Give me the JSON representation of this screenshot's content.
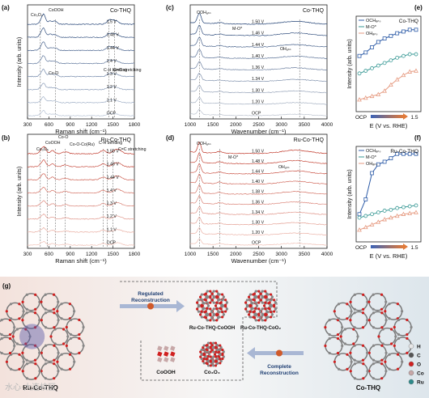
{
  "chart_data": [
    {
      "id": "a",
      "type": "line",
      "panel_label": "(a)",
      "title": "Co-THQ",
      "xlabel": "Raman shift (cm⁻¹)",
      "ylabel": "Intensity (arb. units)",
      "xlim": [
        300,
        1800
      ],
      "xticks": [
        300,
        600,
        900,
        1200,
        1500,
        1800
      ],
      "potentials": [
        "1.5 V",
        "1.48 V",
        "1.44 V",
        "1.4 V",
        "1.3 V",
        "1.2 V",
        "1.1 V",
        "OCP"
      ],
      "annotations": [
        "Co₃O₄",
        "CoOOH",
        "Co-O",
        "C-H bending",
        "C=C stretching"
      ]
    },
    {
      "id": "b",
      "type": "line",
      "panel_label": "(b)",
      "title": "Ru-Co-THQ",
      "xlabel": "Raman shift (cm⁻¹)",
      "ylabel": "Intensity (arb. units)",
      "xlim": [
        300,
        1800
      ],
      "xticks": [
        300,
        600,
        900,
        1200,
        1500,
        1800
      ],
      "potentials": [
        "1.50 V",
        "1.48 V",
        "1.44 V",
        "1.4 V",
        "1.3 V",
        "1.2 V",
        "1.1 V",
        "OCP"
      ],
      "annotations": [
        "Co₃O₄",
        "CoOOH",
        "Co-O",
        "Co-O-Co(Ru)",
        "C-H bending",
        "C=C stretching"
      ]
    },
    {
      "id": "c",
      "type": "line",
      "panel_label": "(c)",
      "title": "Co-THQ",
      "xlabel": "Wavenumber (cm⁻¹)",
      "ylabel": "",
      "xlim": [
        1000,
        4000
      ],
      "xticks": [
        1000,
        1500,
        2000,
        2500,
        3000,
        3500,
        4000
      ],
      "potentials": [
        "1.50 V",
        "1.46 V",
        "1.44 V",
        "1.40 V",
        "1.36 V",
        "1.34 V",
        "1.30 V",
        "1.20 V",
        "OCP"
      ],
      "annotations": [
        "OOHₐₙₛ",
        "M-O*",
        "OHₐₙₛ"
      ]
    },
    {
      "id": "d",
      "type": "line",
      "panel_label": "(d)",
      "title": "Ru-Co-THQ",
      "xlabel": "Wavenumber (cm⁻¹)",
      "ylabel": "",
      "xlim": [
        1000,
        4000
      ],
      "xticks": [
        1000,
        1500,
        2000,
        2500,
        3000,
        3500,
        4000
      ],
      "potentials": [
        "1.50 V",
        "1.48 V",
        "1.44 V",
        "1.40 V",
        "1.38 V",
        "1.36 V",
        "1.34 V",
        "1.30 V",
        "1.20 V",
        "OCP"
      ],
      "annotations": [
        "OOHₐₙₛ",
        "M-O*",
        "OHₐₙₛ"
      ]
    },
    {
      "id": "e",
      "type": "line",
      "panel_label": "(e)",
      "title": "Co-THQ",
      "xlabel": "E (V vs. RHE)",
      "ylabel": "Intensity (arb. units)",
      "xtick_left": "OCP",
      "xtick_right": "1.5",
      "series": [
        {
          "name": "OCHₐₙₛ",
          "color": "#2f5da8",
          "values": [
            0.6,
            0.64,
            0.7,
            0.76,
            0.8,
            0.83,
            0.86,
            0.88,
            0.9,
            0.9
          ]
        },
        {
          "name": "M-O*",
          "color": "#3a9a96",
          "values": [
            0.4,
            0.43,
            0.46,
            0.49,
            0.52,
            0.55,
            0.58,
            0.6,
            0.62,
            0.62
          ]
        },
        {
          "name": "OHₐₙₛ",
          "color": "#e69a80",
          "values": [
            0.1,
            0.12,
            0.14,
            0.16,
            0.2,
            0.27,
            0.33,
            0.38,
            0.42,
            0.43
          ]
        }
      ]
    },
    {
      "id": "f",
      "type": "line",
      "panel_label": "(f)",
      "title": "Ru-Co-THQ",
      "xlabel": "E (V vs. RHE)",
      "ylabel": "Intensity (arb. units)",
      "xtick_left": "OCP",
      "xtick_right": "1.5",
      "series": [
        {
          "name": "OCHₐₙₛ",
          "color": "#2f5da8",
          "values": [
            0.28,
            0.45,
            0.75,
            0.85,
            0.88,
            0.92,
            0.97,
            0.97,
            0.97,
            0.97
          ]
        },
        {
          "name": "M-O*",
          "color": "#3a9a96",
          "values": [
            0.24,
            0.26,
            0.28,
            0.3,
            0.32,
            0.33,
            0.35,
            0.36,
            0.37,
            0.38
          ]
        },
        {
          "name": "OHₐₙₛ",
          "color": "#e69a80",
          "values": [
            0.1,
            0.13,
            0.16,
            0.19,
            0.22,
            0.24,
            0.26,
            0.28,
            0.29,
            0.3
          ]
        }
      ]
    }
  ],
  "scheme": {
    "panel_label": "(g)",
    "left_label": "Ru-Co-THQ",
    "right_label": "Co-THQ",
    "arrow_top": "Regulated\nReconstruction",
    "arrow_bottom": "Complete\nReconstruction",
    "product1": "Ru-Co-THQ-CoOOH",
    "product2": "Ru-Co-THQ-CoO₂",
    "product3": "CoOOH",
    "product4": "Co₃O₄",
    "legend": [
      "H",
      "C",
      "O",
      "Co",
      "Ru"
    ]
  },
  "colors": {
    "hot": "#c0392b",
    "cold": "#1f3f73",
    "legend_H": "#e8e8e8",
    "legend_C": "#555555",
    "legend_O": "#d02020",
    "legend_Co": "#c7a7a7",
    "legend_Ru": "#2c8a8a"
  },
  "watermark": "水心·大连校区"
}
